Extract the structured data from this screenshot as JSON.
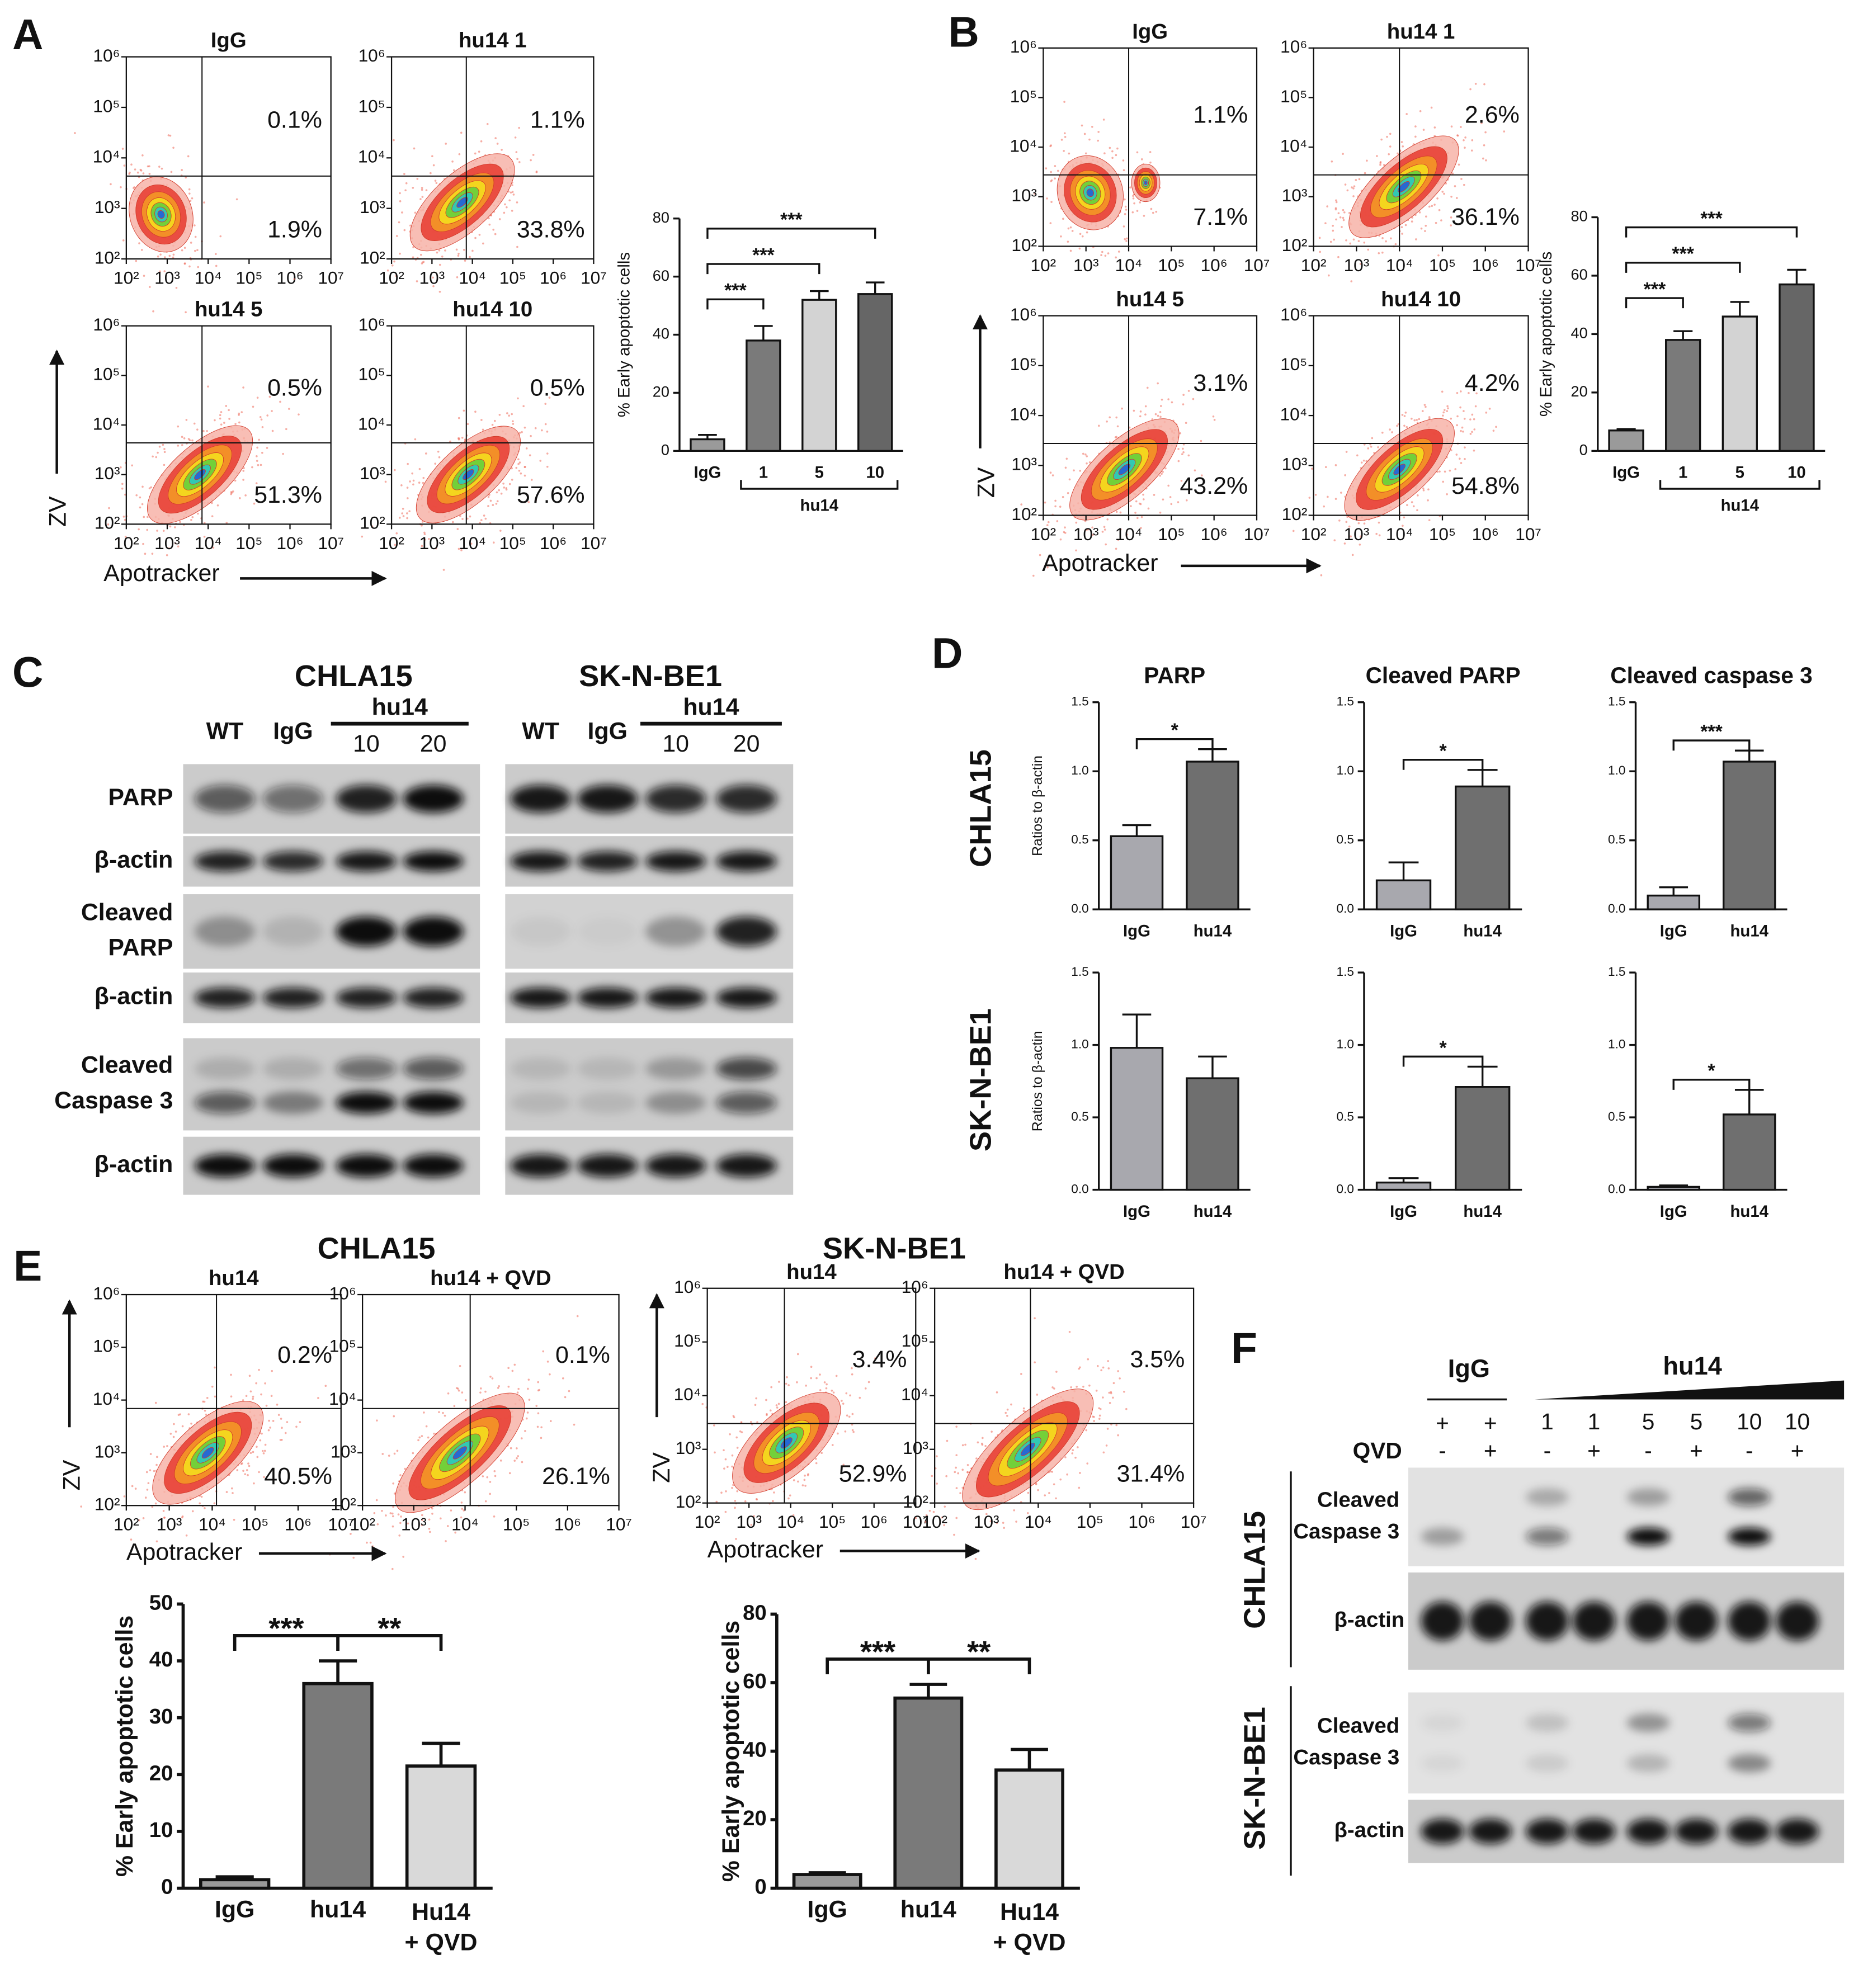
{
  "panel_labels": [
    "A",
    "B",
    "C",
    "D",
    "E",
    "F"
  ],
  "flow_axes": {
    "x_label": "Apotracker",
    "y_label": "ZV",
    "log": true,
    "xlim": [
      100,
      10000000
    ],
    "ylim": [
      100,
      1000000
    ],
    "xticks": [
      {
        "value": 100,
        "label": "10²"
      },
      {
        "value": 1000,
        "label": "10³"
      },
      {
        "value": 10000,
        "label": "10⁴"
      },
      {
        "value": 100000,
        "label": "10⁵"
      },
      {
        "value": 1000000,
        "label": "10⁶"
      },
      {
        "value": 10000000,
        "label": "10⁷"
      }
    ],
    "yticks": [
      {
        "value": 100,
        "label": "10²"
      },
      {
        "value": 1000,
        "label": "10³"
      },
      {
        "value": 10000,
        "label": "10⁴"
      },
      {
        "value": 100000,
        "label": "10⁵"
      },
      {
        "value": 1000000,
        "label": "10⁶"
      }
    ]
  },
  "flow_groups": [
    {
      "plots": [
        {
          "title": "IgG",
          "upper": "0.1%",
          "lower": "1.9%"
        },
        {
          "title": "hu14 1",
          "upper": "1.1%",
          "lower": "33.8%"
        },
        {
          "title": "hu14 5",
          "upper": "0.5%",
          "lower": "51.3%"
        },
        {
          "title": "hu14 10",
          "upper": "0.5%",
          "lower": "57.6%"
        }
      ]
    },
    {
      "plots": [
        {
          "title": "IgG",
          "upper": "1.1%",
          "lower": "7.1%"
        },
        {
          "title": "hu14 1",
          "upper": "2.6%",
          "lower": "36.1%"
        },
        {
          "title": "hu14 5",
          "upper": "3.1%",
          "lower": "43.2%"
        },
        {
          "title": "hu14 10",
          "upper": "4.2%",
          "lower": "54.8%"
        }
      ]
    },
    {
      "title": "CHLA15",
      "plots": [
        {
          "title": "hu14",
          "upper": "0.2%",
          "lower": "40.5%"
        },
        {
          "title": "hu14 + QVD",
          "upper": "0.1%",
          "lower": "26.1%"
        }
      ]
    },
    {
      "title": "SK-N-BE1",
      "plots": [
        {
          "title": "hu14",
          "upper": "3.4%",
          "lower": "52.9%"
        },
        {
          "title": "hu14 + QVD",
          "upper": "3.5%",
          "lower": "31.4%"
        }
      ]
    }
  ],
  "bar_charts": [
    {
      "type": "bar",
      "y_label": "% Early apoptotic cells",
      "categories": [
        "IgG",
        "1",
        "5",
        "10"
      ],
      "values": [
        4,
        38,
        52,
        54
      ],
      "errors": [
        1.5,
        5,
        3,
        4
      ],
      "colors": [
        "#9a9a9a",
        "#7a7a7a",
        "#d3d3d3",
        "#666666"
      ],
      "ylim": [
        0,
        80
      ],
      "yticks": [
        0,
        20,
        40,
        60,
        80
      ],
      "group": {
        "label": "hu14",
        "from": 1,
        "to": 3
      },
      "significance": [
        {
          "label": "***",
          "from": 0,
          "to": 1
        },
        {
          "label": "***",
          "from": 0,
          "to": 2
        },
        {
          "label": "***",
          "from": 0,
          "to": 3
        }
      ]
    },
    {
      "type": "bar",
      "y_label": "% Early apoptotic cells",
      "categories": [
        "IgG",
        "1",
        "5",
        "10"
      ],
      "values": [
        7,
        38,
        46,
        57
      ],
      "errors": [
        0.5,
        3,
        5,
        5
      ],
      "colors": [
        "#9a9a9a",
        "#7a7a7a",
        "#d3d3d3",
        "#666666"
      ],
      "ylim": [
        0,
        80
      ],
      "yticks": [
        0,
        20,
        40,
        60,
        80
      ],
      "group": {
        "label": "hu14",
        "from": 1,
        "to": 3
      },
      "significance": [
        {
          "label": "***",
          "from": 0,
          "to": 1
        },
        {
          "label": "***",
          "from": 0,
          "to": 2
        },
        {
          "label": "***",
          "from": 0,
          "to": 3
        }
      ]
    },
    {
      "type": "bar",
      "title": "PARP",
      "y_label": "Ratios to β-actin",
      "categories": [
        "IgG",
        "hu14"
      ],
      "values": [
        0.53,
        1.07
      ],
      "errors": [
        0.08,
        0.09
      ],
      "colors": [
        "#a8a8ae",
        "#6f6f6f"
      ],
      "ylim": [
        0,
        1.5
      ],
      "yticks": [
        {
          "value": 0,
          "label": "0.0"
        },
        0.5,
        {
          "value": 1,
          "label": "1.0"
        },
        1.5
      ],
      "significance": [
        {
          "label": "*",
          "from": 0,
          "to": 1
        }
      ]
    },
    {
      "type": "bar",
      "title": "Cleaved PARP",
      "categories": [
        "IgG",
        "hu14"
      ],
      "values": [
        0.21,
        0.89
      ],
      "errors": [
        0.13,
        0.12
      ],
      "colors": [
        "#a8a8ae",
        "#6f6f6f"
      ],
      "ylim": [
        0,
        1.5
      ],
      "yticks": [
        {
          "value": 0,
          "label": "0.0"
        },
        0.5,
        {
          "value": 1,
          "label": "1.0"
        },
        1.5
      ],
      "significance": [
        {
          "label": "*",
          "from": 0,
          "to": 1
        }
      ]
    },
    {
      "type": "bar",
      "title": "Cleaved caspase 3",
      "categories": [
        "IgG",
        "hu14"
      ],
      "values": [
        0.1,
        1.07
      ],
      "errors": [
        0.06,
        0.08
      ],
      "colors": [
        "#a8a8ae",
        "#6f6f6f"
      ],
      "ylim": [
        0,
        1.5
      ],
      "yticks": [
        {
          "value": 0,
          "label": "0.0"
        },
        0.5,
        {
          "value": 1,
          "label": "1.0"
        },
        1.5
      ],
      "significance": [
        {
          "label": "***",
          "from": 0,
          "to": 1
        }
      ]
    },
    {
      "type": "bar",
      "y_label": "Ratios to β-actin",
      "categories": [
        "IgG",
        "hu14"
      ],
      "values": [
        0.98,
        0.77
      ],
      "errors": [
        0.23,
        0.15
      ],
      "colors": [
        "#a8a8ae",
        "#6f6f6f"
      ],
      "ylim": [
        0,
        1.5
      ],
      "yticks": [
        {
          "value": 0,
          "label": "0.0"
        },
        0.5,
        {
          "value": 1,
          "label": "1.0"
        },
        1.5
      ],
      "significance": []
    },
    {
      "type": "bar",
      "categories": [
        "IgG",
        "hu14"
      ],
      "values": [
        0.05,
        0.71
      ],
      "errors": [
        0.03,
        0.14
      ],
      "colors": [
        "#a8a8ae",
        "#6f6f6f"
      ],
      "ylim": [
        0,
        1.5
      ],
      "yticks": [
        {
          "value": 0,
          "label": "0.0"
        },
        0.5,
        {
          "value": 1,
          "label": "1.0"
        },
        1.5
      ],
      "significance": [
        {
          "label": "*",
          "from": 0,
          "to": 1
        }
      ]
    },
    {
      "type": "bar",
      "categories": [
        "IgG",
        "hu14"
      ],
      "values": [
        0.02,
        0.52
      ],
      "errors": [
        0.01,
        0.17
      ],
      "colors": [
        "#a8a8ae",
        "#6f6f6f"
      ],
      "ylim": [
        0,
        1.5
      ],
      "yticks": [
        {
          "value": 0,
          "label": "0.0"
        },
        0.5,
        {
          "value": 1,
          "label": "1.0"
        },
        1.5
      ],
      "significance": [
        {
          "label": "*",
          "from": 0,
          "to": 1
        }
      ]
    },
    {
      "type": "bar",
      "y_label": "% Early apoptotic cells",
      "categories": [
        "IgG",
        "hu14",
        [
          "Hu14",
          "+ QVD"
        ]
      ],
      "values": [
        1.5,
        36,
        21.5
      ],
      "errors": [
        0.5,
        4,
        4
      ],
      "colors": [
        "#9a9a9a",
        "#7a7a7a",
        "#d9d9d9"
      ],
      "ylim": [
        0,
        50
      ],
      "yticks": [
        0,
        10,
        20,
        30,
        40,
        50
      ],
      "significance": [
        {
          "label": "***",
          "from": 0,
          "to": 1
        },
        {
          "label": "**",
          "from": 1,
          "to": 2
        }
      ]
    },
    {
      "type": "bar",
      "y_label": "% Early apoptotic cells",
      "categories": [
        "IgG",
        "hu14",
        [
          "Hu14",
          "+ QVD"
        ]
      ],
      "values": [
        4,
        55.5,
        34.5
      ],
      "errors": [
        0.5,
        4,
        6
      ],
      "colors": [
        "#9a9a9a",
        "#7a7a7a",
        "#d9d9d9"
      ],
      "ylim": [
        0,
        80
      ],
      "yticks": [
        0,
        20,
        40,
        60,
        80
      ],
      "significance": [
        {
          "label": "***",
          "from": 0,
          "to": 1
        },
        {
          "label": "**",
          "from": 1,
          "to": 2
        }
      ]
    }
  ],
  "panel_d": {
    "rows": [
      "CHLA15",
      "SK-N-BE1"
    ]
  },
  "blot_c": {
    "titles": [
      "CHLA15",
      "SK-N-BE1"
    ],
    "lanes": [
      "WT",
      "IgG"
    ],
    "group": "hu14",
    "doses": [
      "10",
      "20"
    ],
    "rows": [
      [
        "PARP"
      ],
      [
        "β-actin"
      ],
      [
        "Cleaved",
        "PARP"
      ],
      [
        "β-actin"
      ],
      [
        "Cleaved",
        "Caspase 3"
      ],
      [
        "β-actin"
      ]
    ]
  },
  "blot_f": {
    "groups": [
      "IgG",
      "hu14"
    ],
    "doses": [
      "1",
      "1",
      "5",
      "5",
      "10",
      "10"
    ],
    "treatment": [
      "+",
      "+"
    ],
    "qvd_label": "QVD",
    "qvd": [
      "-",
      "+",
      "-",
      "+",
      "-",
      "+",
      "-",
      "+"
    ],
    "cell_lines": [
      "CHLA15",
      "SK-N-BE1"
    ],
    "rows": [
      [
        "Cleaved",
        "Caspase 3"
      ],
      [
        "β-actin"
      ]
    ]
  }
}
